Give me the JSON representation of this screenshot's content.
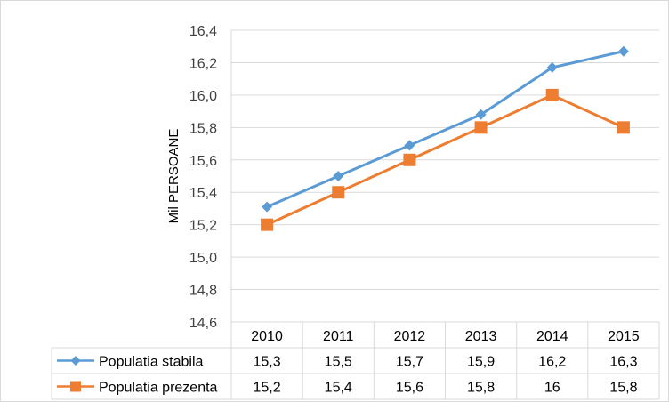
{
  "chart_data": {
    "type": "line",
    "title": "",
    "xlabel": "",
    "ylabel": "Mil PERSOANE",
    "ylim": [
      14.6,
      16.4
    ],
    "y_ticks": [
      "14,6",
      "14,8",
      "15,0",
      "15,2",
      "15,4",
      "15,6",
      "15,8",
      "16,0",
      "16,2",
      "16,4"
    ],
    "grid": true,
    "legend": "data-table",
    "categories": [
      "2010",
      "2011",
      "2012",
      "2013",
      "2014",
      "2015"
    ],
    "series": [
      {
        "name": "Populatia stabila",
        "values": [
          15.31,
          15.5,
          15.69,
          15.88,
          16.17,
          16.27
        ],
        "table_labels": [
          "15,3",
          "15,5",
          "15,7",
          "15,9",
          "16,2",
          "16,3"
        ],
        "color": "#5B9BD5",
        "marker": "diamond"
      },
      {
        "name": "Populatia prezenta",
        "values": [
          15.2,
          15.4,
          15.6,
          15.8,
          16.0,
          15.8
        ],
        "table_labels": [
          "15,2",
          "15,4",
          "15,6",
          "15,8",
          "16",
          "15,8"
        ],
        "color": "#ED7D31",
        "marker": "square"
      }
    ]
  }
}
